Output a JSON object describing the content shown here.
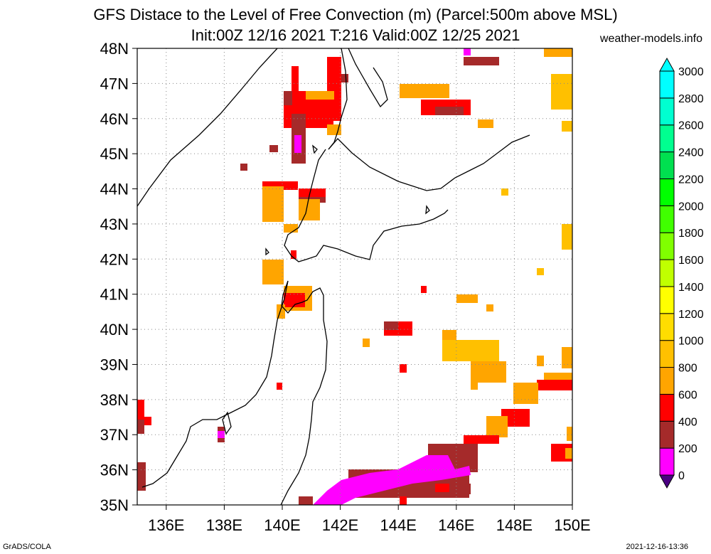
{
  "title_line1": "GFS Distace to the Level of Free Convection (m) (Parcel:500m above MSL)",
  "title_line2": "Init:00Z 12/16 2021 T:216 Valid:00Z 12/25 2021",
  "site": "weather-models.info",
  "footer_left": "GrADS/COLA",
  "footer_right": "2021-12-16-13:36",
  "map": {
    "lon_range": [
      135,
      150
    ],
    "lat_range": [
      35,
      48
    ],
    "lon_ticks": [
      "136E",
      "138E",
      "140E",
      "142E",
      "144E",
      "146E",
      "148E",
      "150E"
    ],
    "lat_ticks": [
      "35N",
      "36N",
      "37N",
      "38N",
      "39N",
      "40N",
      "41N",
      "42N",
      "43N",
      "44N",
      "45N",
      "46N",
      "47N",
      "48N"
    ],
    "grid": "dotted",
    "colorbar": {
      "ticks": [
        "0",
        "200",
        "400",
        "600",
        "800",
        "1000",
        "1200",
        "1400",
        "1600",
        "1800",
        "2000",
        "2200",
        "2400",
        "2600",
        "2800",
        "3000"
      ],
      "colors": [
        "#4b0082",
        "#ff00ff",
        "#a52a2a",
        "#ff0000",
        "#ffa500",
        "#ffc000",
        "#ffdd00",
        "#ffff00",
        "#c0ff00",
        "#80ff00",
        "#40ff00",
        "#00ff00",
        "#00e050",
        "#00ff90",
        "#00ffd0",
        "#00ffff"
      ],
      "range": [
        0,
        3000
      ]
    }
  }
}
